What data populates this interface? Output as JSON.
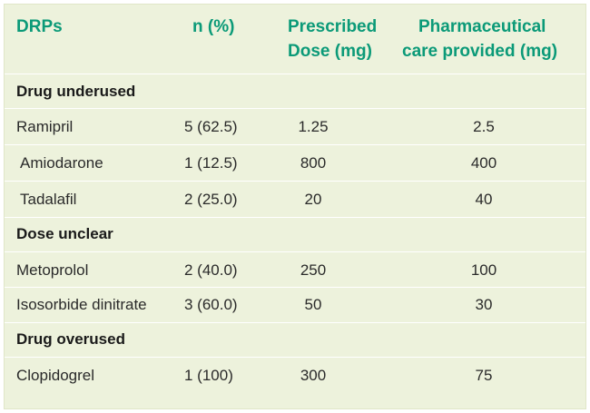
{
  "table": {
    "headers": {
      "drps": "DRPs",
      "n_pct": "n (%)",
      "prescribed_l1": "Prescribed",
      "prescribed_l2": "Dose (mg)",
      "pharma_l1": "Pharmaceutical",
      "pharma_l2": "care provided (mg)"
    },
    "sections": [
      {
        "title": "Drug underused",
        "rows": [
          {
            "drug": "Ramipril",
            "n": "5 (62.5)",
            "prescribed": "1.25",
            "care": "2.5"
          },
          {
            "drug": "Amiodarone",
            "n": "1 (12.5)",
            "prescribed": "800",
            "care": "400"
          },
          {
            "drug": "Tadalafil",
            "n": "2 (25.0)",
            "prescribed": "20",
            "care": "40"
          }
        ]
      },
      {
        "title": "Dose unclear",
        "rows": [
          {
            "drug": "Metoprolol",
            "n": "2 (40.0)",
            "prescribed": "250",
            "care": "100"
          },
          {
            "drug": "Isosorbide dinitrate",
            "n": "3 (60.0)",
            "prescribed": "50",
            "care": "30"
          }
        ]
      },
      {
        "title": "Drug overused",
        "rows": [
          {
            "drug": "Clopidogrel",
            "n": "1 (100)",
            "prescribed": "300",
            "care": "75"
          }
        ]
      }
    ]
  },
  "colors": {
    "background": "#edf2dc",
    "header_text": "#0b9a78",
    "rule": "#ffffff"
  }
}
